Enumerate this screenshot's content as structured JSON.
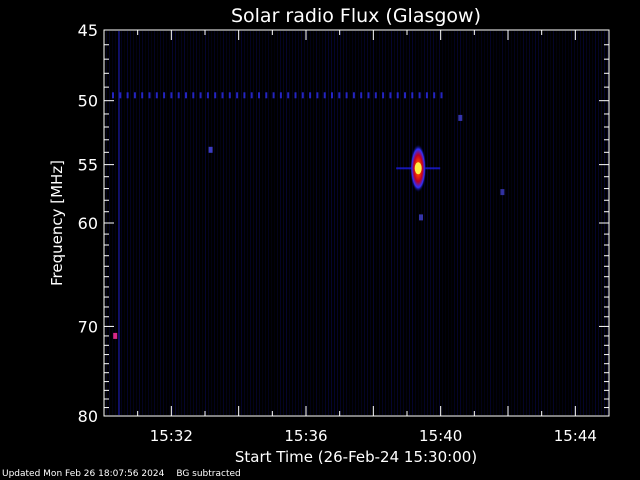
{
  "chart_data": {
    "type": "heatmap",
    "title": "Solar radio Flux (Glasgow)",
    "xlabel": "Start Time (26-Feb-24 15:30:00)",
    "ylabel": "Frequency [MHz]",
    "x_ticks": [
      "15:32",
      "15:36",
      "15:40",
      "15:44"
    ],
    "y_ticks": [
      45,
      50,
      55,
      60,
      70,
      80
    ],
    "xlim": [
      "15:30:00",
      "15:45:00"
    ],
    "ylim": [
      45,
      80
    ],
    "y_scale": "log",
    "colormap": "black-blue-red-yellow",
    "features": [
      {
        "label": "burst",
        "time": "15:39:20",
        "freq_mhz": 55.3,
        "intensity": 1.0
      },
      {
        "label": "persistent-line",
        "freq_mhz": 49.6,
        "time_range": [
          "15:30:00",
          "15:40:00"
        ],
        "intensity": 0.35
      },
      {
        "label": "spot",
        "time": "15:33:10",
        "freq_mhz": 53.8,
        "intensity": 0.45
      },
      {
        "label": "spot",
        "time": "15:30:20",
        "freq_mhz": 71.0,
        "intensity": 0.55
      },
      {
        "label": "spot",
        "time": "15:40:35",
        "freq_mhz": 51.3,
        "intensity": 0.35
      },
      {
        "label": "spot",
        "time": "15:41:50",
        "freq_mhz": 57.3,
        "intensity": 0.3
      },
      {
        "label": "spot",
        "time": "15:39:25",
        "freq_mhz": 59.5,
        "intensity": 0.35
      }
    ],
    "grid": false,
    "legend": "none"
  },
  "footer": {
    "updated": "Updated Mon Feb 26 18:07:56 2024",
    "note": "BG subtracted"
  },
  "colors": {
    "background": "#000000",
    "axes": "#ffffff",
    "text": "#ffffff"
  }
}
